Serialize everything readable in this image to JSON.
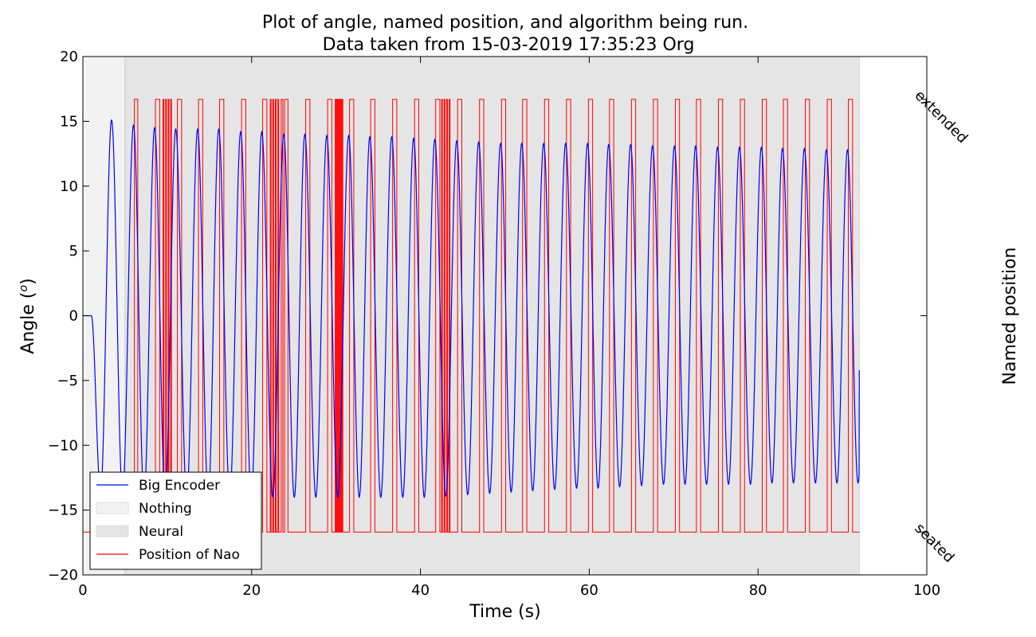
{
  "chart_data": {
    "type": "line",
    "title": "Plot of angle, named position, and algorithm being run.",
    "subtitle": "Data taken from 15-03-2019 17:35:23 Org",
    "xlabel": "Time (s)",
    "ylabel": "Angle (",
    "ylabel_sup": "o",
    "ylabel_close": ")",
    "y2label": "Named position",
    "xlim": [
      0,
      100
    ],
    "ylim": [
      -20,
      20
    ],
    "xticks": [
      0,
      20,
      40,
      60,
      80,
      100
    ],
    "yticks": [
      -20,
      -15,
      -10,
      -5,
      0,
      5,
      10,
      15,
      20
    ],
    "y2ticks": [
      {
        "label": "extended",
        "value": 16.7
      },
      {
        "label": "seated",
        "value": -16.7
      }
    ],
    "grid": false,
    "legend_placement": "lower-left",
    "regions": [
      {
        "name": "Nothing",
        "x_start": 0,
        "x_end": 5.0,
        "color": "#f2f2f2"
      },
      {
        "name": "Neural",
        "x_start": 5.0,
        "x_end": 92.0,
        "color": "#e5e5e5"
      }
    ],
    "series": [
      {
        "name": "Big Encoder",
        "color": "#0000ff",
        "hold_until": 1.0,
        "peaks_x": [
          3.4,
          6.0,
          8.5,
          11.0,
          13.6,
          16.1,
          18.7,
          21.2,
          23.8,
          26.3,
          28.9,
          31.5,
          34.0,
          36.6,
          39.2,
          41.7,
          44.3,
          46.9,
          49.5,
          52.0,
          54.6,
          57.2,
          59.8,
          62.3,
          64.9,
          67.5,
          70.1,
          72.6,
          75.2,
          77.8,
          80.4,
          82.9,
          85.5,
          88.1,
          90.6
        ],
        "peaks_y": [
          15.1,
          14.7,
          14.5,
          14.4,
          14.4,
          14.4,
          14.2,
          14.2,
          14.0,
          14.0,
          13.9,
          13.9,
          13.8,
          13.8,
          13.7,
          13.6,
          13.5,
          13.4,
          13.3,
          13.3,
          13.3,
          13.3,
          13.3,
          13.2,
          13.2,
          13.1,
          13.1,
          13.1,
          13.0,
          13.0,
          13.0,
          12.9,
          12.9,
          12.8,
          12.8
        ],
        "troughs_y": [
          -13.6,
          -13.8,
          -14.0,
          -14.0,
          -14.0,
          -14.0,
          -14.0,
          -14.0,
          -14.0,
          -14.0,
          -14.0,
          -14.0,
          -14.0,
          -14.0,
          -14.0,
          -14.0,
          -13.9,
          -13.8,
          -13.7,
          -13.6,
          -13.5,
          -13.4,
          -13.3,
          -13.3,
          -13.2,
          -13.1,
          -13.0,
          -13.0,
          -13.0,
          -13.0,
          -13.0,
          -12.9,
          -12.9,
          -12.9
        ],
        "end_value": -4.2
      },
      {
        "name": "Position of Nao",
        "color": "#ff0000",
        "high": 16.7,
        "low": -16.7,
        "transitions": [
          0,
          6.1,
          6.5,
          8.6,
          9.1,
          9.5,
          9.6,
          9.8,
          9.9,
          10.1,
          10.2,
          10.4,
          10.5,
          11.2,
          11.7,
          13.7,
          14.2,
          16.2,
          16.7,
          18.8,
          19.3,
          21.3,
          21.8,
          22.2,
          22.3,
          22.5,
          22.6,
          22.8,
          22.9,
          23.1,
          23.2,
          23.5,
          23.7,
          23.9,
          24.3,
          26.4,
          26.9,
          29.0,
          29.5,
          29.9,
          30.0,
          30.1,
          30.2,
          30.3,
          30.4,
          30.5,
          30.6,
          30.7,
          30.8,
          31.6,
          32.1,
          34.1,
          34.6,
          36.7,
          37.2,
          39.3,
          39.8,
          41.8,
          42.3,
          42.5,
          42.6,
          42.8,
          42.9,
          43.1,
          43.2,
          43.4,
          43.5,
          44.4,
          44.9,
          47.0,
          47.5,
          49.6,
          50.1,
          52.1,
          52.6,
          54.7,
          55.2,
          57.3,
          57.8,
          59.9,
          60.4,
          62.4,
          62.9,
          65.0,
          65.5,
          67.6,
          68.1,
          70.2,
          70.7,
          72.7,
          73.2,
          75.3,
          75.8,
          77.9,
          78.4,
          80.5,
          81.0,
          83.0,
          83.5,
          85.6,
          86.1,
          88.2,
          88.7,
          90.7,
          91.2,
          92.0
        ]
      }
    ],
    "legend_entries": [
      {
        "label": "Big Encoder",
        "kind": "line",
        "color": "#0000ff"
      },
      {
        "label": "Nothing",
        "kind": "patch",
        "color": "#f2f2f2"
      },
      {
        "label": "Neural",
        "kind": "patch",
        "color": "#e5e5e5"
      },
      {
        "label": "Position of Nao",
        "kind": "line",
        "color": "#ff0000"
      }
    ]
  }
}
